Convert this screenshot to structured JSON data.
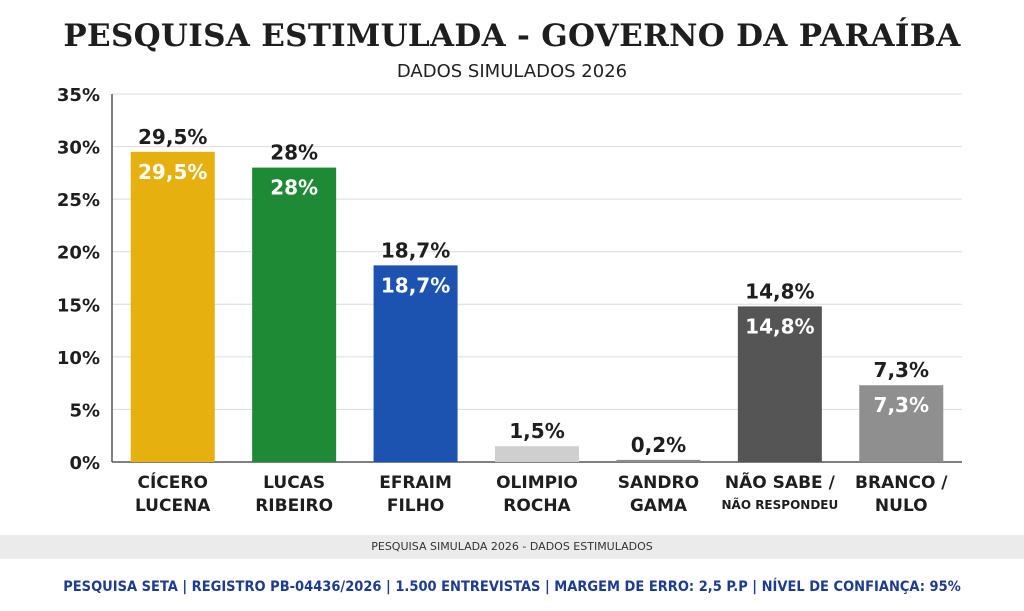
{
  "chart_data": {
    "type": "bar",
    "title": "PESQUISA ESTIMULADA - GOVERNO DA PARAÍBA",
    "subtitle": "DADOS SIMULADOS 2026",
    "ylim": [
      0,
      35
    ],
    "yticks": [
      0,
      5,
      10,
      15,
      20,
      25,
      30,
      35
    ],
    "ytick_labels": [
      "0%",
      "5%",
      "10%",
      "15%",
      "20%",
      "25%",
      "30%",
      "35%"
    ],
    "grid": true,
    "categories": [
      {
        "line1": "CÍCERO",
        "line2": "LUCENA"
      },
      {
        "line1": "LUCAS",
        "line2": "RIBEIRO"
      },
      {
        "line1": "EFRAIM",
        "line2": "FILHO"
      },
      {
        "line1": "OLIMPIO",
        "line2": "ROCHA"
      },
      {
        "line1": "SANDRO",
        "line2": "GAMA"
      },
      {
        "line1": "NÃO SABE /",
        "line2": "NÃO RESPONDEU"
      },
      {
        "line1": "BRANCO /",
        "line2": "NULO"
      }
    ],
    "values": [
      29.5,
      28,
      18.7,
      1.5,
      0.2,
      14.8,
      7.3
    ],
    "value_labels": [
      "29,5%",
      "28%",
      "18,7%",
      "1,5%",
      "0,2%",
      "14,8%",
      "7,3%"
    ],
    "colors": [
      "#e6b00e",
      "#1f8a35",
      "#1c52b0",
      "#cfcfcf",
      "#8c8c8c",
      "#555555",
      "#8f8f8f"
    ]
  },
  "note": "PESQUISA SIMULADA 2026 - DADOS ESTIMULADOS",
  "footer": "PESQUISA SETA | REGISTRO PB-04436/2026 | 1.500 ENTREVISTAS | MARGEM DE ERRO: 2,5 P.P | NÍVEL DE CONFIANÇA: 95%"
}
